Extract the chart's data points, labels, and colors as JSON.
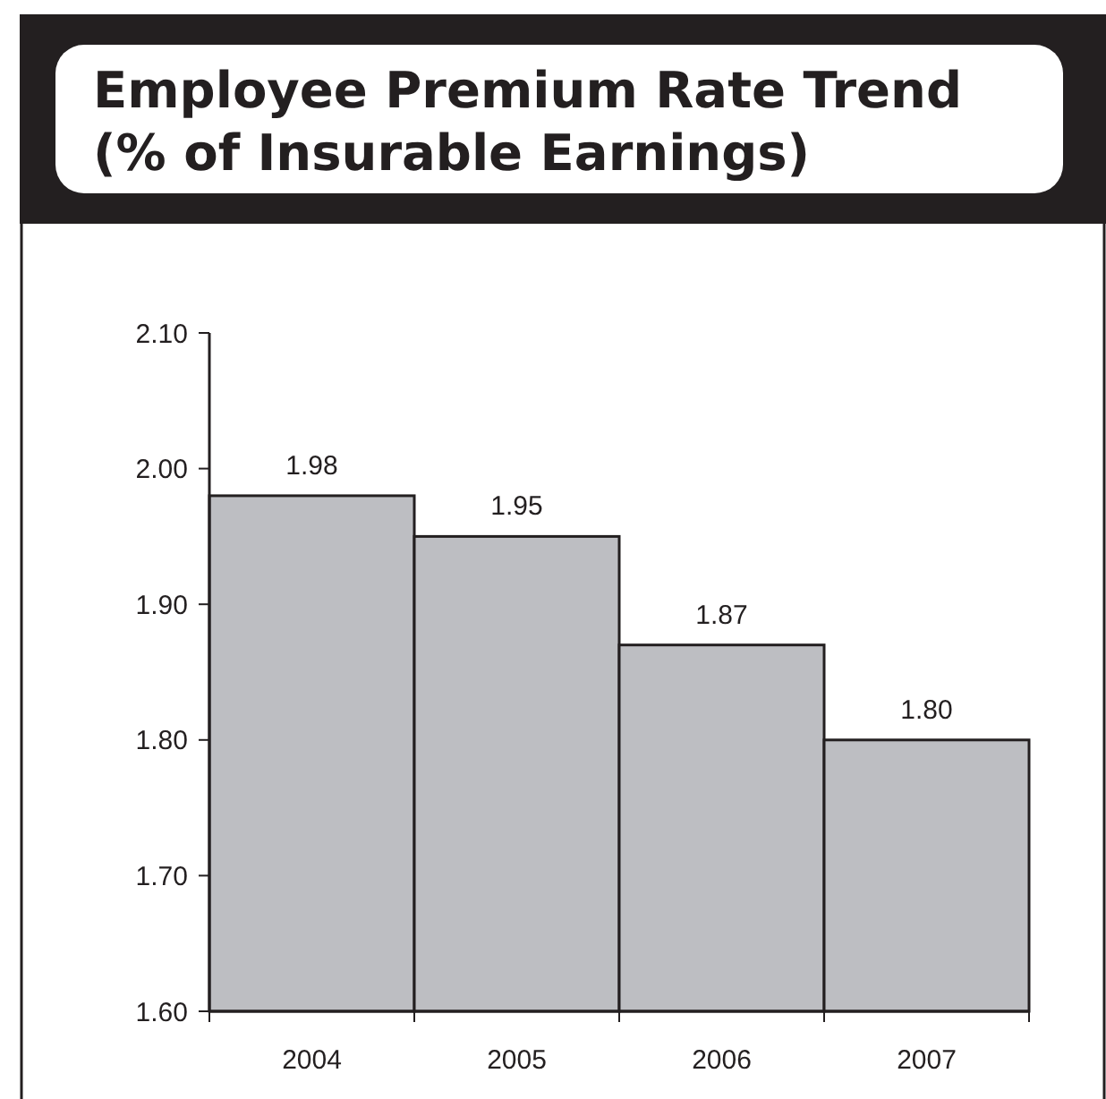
{
  "chart_data": {
    "type": "bar",
    "title": "Employee Premium Rate Trend\n(% of Insurable Earnings)",
    "categories": [
      "2004",
      "2005",
      "2006",
      "2007"
    ],
    "values": [
      1.98,
      1.95,
      1.87,
      1.8
    ],
    "value_labels": [
      "1.98",
      "1.95",
      "1.87",
      "1.80"
    ],
    "color": "#bdbec2",
    "ylim": [
      1.6,
      2.1
    ],
    "yticks": [
      {
        "value": 1.6,
        "label": "1.60"
      },
      {
        "value": 1.7,
        "label": "1.70"
      },
      {
        "value": 1.8,
        "label": "1.80"
      },
      {
        "value": 1.9,
        "label": "1.90"
      },
      {
        "value": 2.0,
        "label": "2.00"
      },
      {
        "value": 2.1,
        "label": "2.10"
      }
    ],
    "grid": false
  }
}
